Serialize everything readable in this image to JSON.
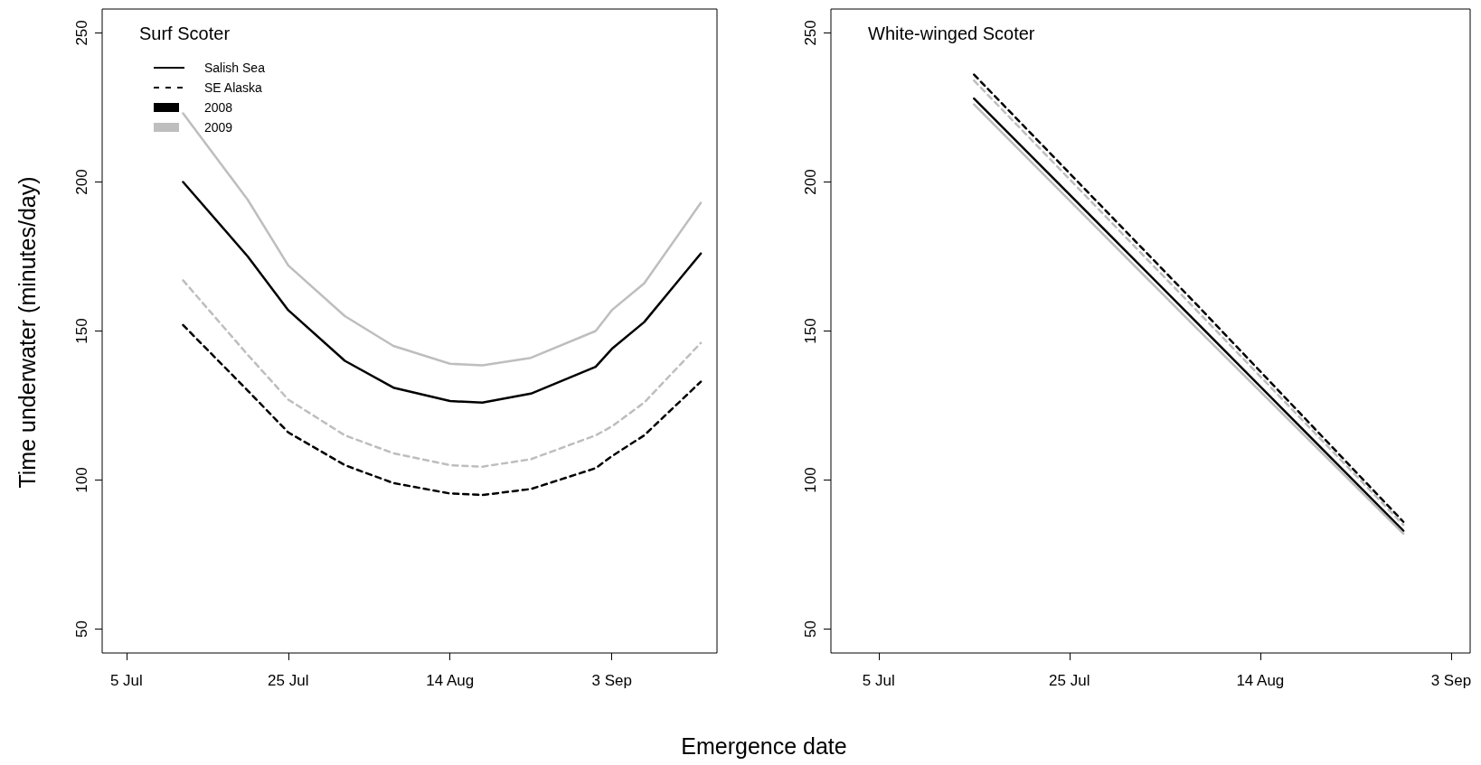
{
  "chart_data": [
    {
      "type": "line",
      "title": "Surf Scoter",
      "ylabel": "Time underwater (minutes/day)",
      "xlabel": "Emergence date",
      "annotations": [
        "Salish Sea",
        "SE Alaska",
        "2008",
        "2009"
      ],
      "x": [
        "--07-12",
        "--07-20",
        "--07-25",
        "--08-01",
        "--08-07",
        "--08-14",
        "--08-18",
        "--08-24",
        "--09-01",
        "--09-03",
        "--09-07",
        "--09-14"
      ],
      "series": [
        {
          "color": "#000000",
          "line_style": "solid",
          "values": [
            200,
            175,
            157,
            140,
            131,
            126.5,
            126,
            129,
            138,
            144,
            153,
            176
          ]
        },
        {
          "color": "#000000",
          "line_style": "dashed",
          "values": [
            152,
            130,
            116,
            105,
            99,
            95.5,
            95,
            97,
            104,
            108,
            115,
            133
          ]
        },
        {
          "color": "#bebebe",
          "line_style": "solid",
          "values": [
            223,
            194,
            172,
            155,
            145,
            139,
            138.5,
            141,
            150,
            157,
            166,
            193
          ]
        },
        {
          "color": "#bebebe",
          "line_style": "dashed",
          "values": [
            167,
            142,
            127,
            115,
            109,
            105,
            104.5,
            107,
            115,
            118,
            126,
            146
          ]
        }
      ],
      "xlim": [
        "--07-02",
        "--09-16"
      ],
      "ylim": [
        42,
        258
      ],
      "xticks": [
        {
          "value": "--07-05",
          "label": "5 Jul"
        },
        {
          "value": "--07-25",
          "label": "25 Jul"
        },
        {
          "value": "--08-14",
          "label": "14 Aug"
        },
        {
          "value": "--09-03",
          "label": "3 Sep"
        }
      ],
      "yticks": [
        50,
        100,
        150,
        200,
        250
      ],
      "grid": false,
      "marker": "none"
    },
    {
      "type": "line",
      "title": "White-winged Scoter",
      "x": [
        "--07-15",
        "--08-07",
        "--08-29"
      ],
      "series": [
        {
          "color": "#000000",
          "line_style": "solid",
          "values": [
            228,
            154,
            83
          ]
        },
        {
          "color": "#000000",
          "line_style": "dashed",
          "values": [
            236,
            160,
            86
          ]
        },
        {
          "color": "#bebebe",
          "line_style": "solid",
          "values": [
            226,
            152,
            82
          ]
        },
        {
          "color": "#bebebe",
          "line_style": "dashed",
          "values": [
            234,
            158,
            85
          ]
        }
      ],
      "xlim": [
        "--06-30",
        "--09-05"
      ],
      "ylim": [
        42,
        258
      ],
      "xticks": [
        {
          "value": "--07-05",
          "label": "5 Jul"
        },
        {
          "value": "--07-25",
          "label": "25 Jul"
        },
        {
          "value": "--08-14",
          "label": "14 Aug"
        },
        {
          "value": "--09-03",
          "label": "3 Sep"
        }
      ],
      "yticks": [
        50,
        100,
        150,
        200,
        250
      ],
      "grid": false,
      "marker": "none"
    }
  ]
}
